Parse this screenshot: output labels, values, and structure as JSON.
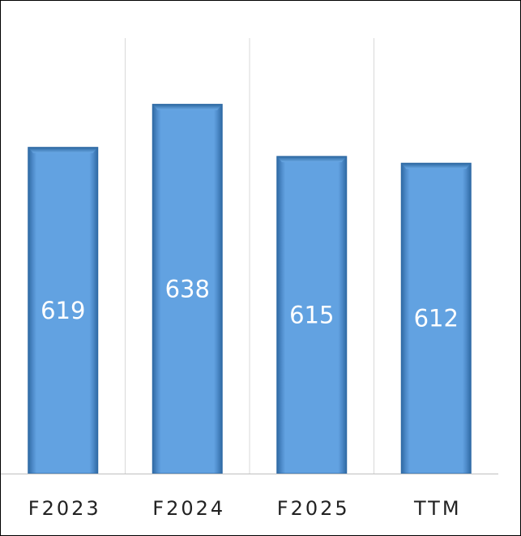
{
  "chart_data": {
    "type": "bar",
    "categories": [
      "F2023",
      "F2024",
      "F2025",
      "TTM"
    ],
    "values": [
      619,
      638,
      615,
      612
    ],
    "ylim": [
      475,
      640
    ],
    "grid": "vertical",
    "legend": "none",
    "bar_color": "#5b9bd5",
    "bar_edge_color": "#2e6aa6"
  }
}
